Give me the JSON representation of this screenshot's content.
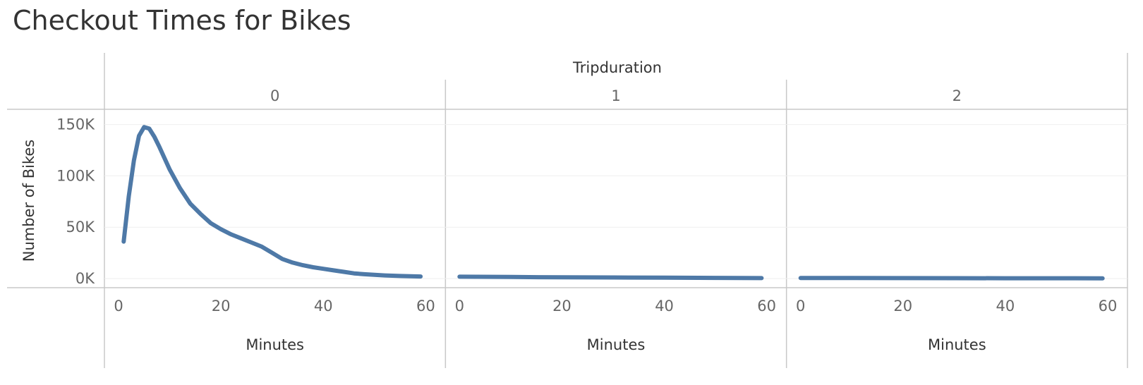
{
  "chart_data": {
    "type": "line",
    "title": "Checkout Times for Bikes",
    "column_header": "Tripduration",
    "ylabel": "Number of Bikes",
    "xlabel": "Minutes",
    "ylim": [
      0,
      160000
    ],
    "y_ticks": [
      0,
      50000,
      100000,
      150000
    ],
    "y_tick_labels": [
      "0K",
      "50K",
      "100K",
      "150K"
    ],
    "xlim": [
      0,
      60
    ],
    "x_ticks": [
      0,
      20,
      40,
      60
    ],
    "x_tick_labels": [
      "0",
      "20",
      "40",
      "60"
    ],
    "panes": [
      {
        "label": "0",
        "series": [
          {
            "x": [
              1,
              2,
              3,
              4,
              5,
              6,
              7,
              8,
              9,
              10,
              12,
              14,
              16,
              18,
              20,
              22,
              24,
              26,
              28,
              30,
              32,
              34,
              36,
              38,
              40,
              42,
              44,
              46,
              48,
              50,
              52,
              55,
              59
            ],
            "values": [
              36000,
              80000,
              115000,
              139000,
              147500,
              146000,
              138000,
              128000,
              117000,
              106000,
              88000,
              73000,
              63000,
              54000,
              48000,
              43000,
              39000,
              35000,
              31000,
              25000,
              19000,
              15500,
              13000,
              11000,
              9500,
              8000,
              6500,
              5000,
              4200,
              3600,
              3000,
              2500,
              2000
            ]
          }
        ]
      },
      {
        "label": "1",
        "series": [
          {
            "x": [
              0,
              10,
              20,
              30,
              40,
              50,
              59
            ],
            "values": [
              1800,
              1500,
              1200,
              1000,
              800,
              600,
              400
            ]
          }
        ]
      },
      {
        "label": "2",
        "series": [
          {
            "x": [
              0,
              10,
              20,
              30,
              40,
              50,
              59
            ],
            "values": [
              500,
              450,
              400,
              350,
              300,
              250,
              200
            ]
          }
        ]
      }
    ]
  }
}
